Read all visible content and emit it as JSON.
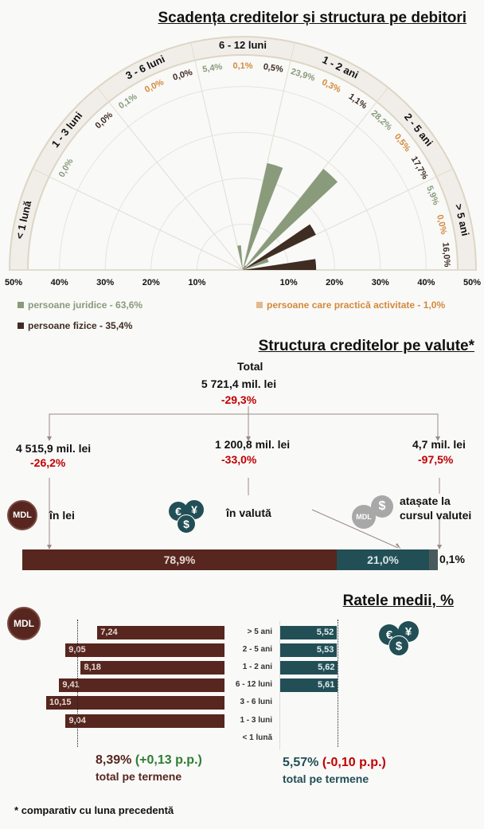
{
  "colors": {
    "juridice": "#899b7a",
    "practica": "#d4893a",
    "fizice": "#3f2c22",
    "mdl": "#56261f",
    "valuta": "#214f55",
    "other": "#4a5a5c"
  },
  "chart_data": [
    {
      "type": "polar-bar",
      "title": "Scadența creditelor și structura pe debitori",
      "categories": [
        "< 1 lună",
        "1 - 3 luni",
        "3 - 6 luni",
        "6 - 12 luni",
        "1 - 2 ani",
        "2 - 5 ani",
        "> 5 ani"
      ],
      "series": [
        {
          "name": "persoane juridice - 63,6%",
          "key": "juridice",
          "values": [
            0.0,
            0.0,
            0.1,
            5.4,
            23.9,
            28.2,
            5.9
          ],
          "labels": [
            "",
            "0,0%",
            "0,1%",
            "5,4%",
            "23,9%",
            "28,2%",
            "5,9%"
          ]
        },
        {
          "name": "persoane care practică activitate - 1,0%",
          "key": "practica",
          "values": [
            0,
            0,
            0.0,
            0.1,
            0.3,
            0.5,
            0.0
          ],
          "labels": [
            "",
            "",
            "0,0%",
            "0,1%",
            "0,3%",
            "0,5%",
            "0,0%"
          ]
        },
        {
          "name": "persoane fizice - 35,4%",
          "key": "fizice",
          "values": [
            0,
            0.0,
            0.0,
            0.5,
            1.1,
            17.7,
            16.0
          ],
          "labels": [
            "",
            "0,0%",
            "0,0%",
            "0,5%",
            "1,1%",
            "17,7%",
            "16,0%"
          ]
        }
      ],
      "axis_ticks": [
        "50%",
        "40%",
        "30%",
        "20%",
        "10%",
        "10%",
        "20%",
        "30%",
        "40%",
        "50%"
      ],
      "rmax": 50
    },
    {
      "type": "bar",
      "title": "Ratele medii, %",
      "categories": [
        "> 5 ani",
        "2 - 5 ani",
        "1 - 2 ani",
        "6 - 12 luni",
        "3 - 6 luni",
        "1 - 3 luni",
        "< 1 lună"
      ],
      "series": [
        {
          "name": "MDL",
          "values": [
            7.24,
            9.05,
            8.18,
            9.41,
            10.15,
            9.04,
            null
          ],
          "labels": [
            "7,24",
            "9,05",
            "8,18",
            "9,41",
            "10,15",
            "9,04",
            ""
          ],
          "average": 8.39
        },
        {
          "name": "valută",
          "values": [
            5.52,
            5.53,
            5.62,
            5.61,
            null,
            null,
            null
          ],
          "labels": [
            "5,52",
            "5,53",
            "5,62",
            "5,61",
            "",
            "",
            ""
          ],
          "average": 5.57
        }
      ]
    }
  ],
  "structure": {
    "title": "Structura creditelor pe valute*",
    "total_label": "Total",
    "total_value": "5 721,4 mil. lei",
    "total_change": "-29,3%",
    "branches": [
      {
        "value": "4 515,9 mil. lei",
        "change": "-26,2%",
        "name": "în lei",
        "share": "78,9%",
        "pct": 78.9
      },
      {
        "value": "1 200,8 mil. lei",
        "change": "-33,0%",
        "name": "în valută",
        "share": "21,0%",
        "pct": 21.0
      },
      {
        "value": "4,7 mil. lei",
        "change": "-97,5%",
        "name": "atașate la cursul valutei",
        "share": "0,1%",
        "pct": 0.1
      }
    ]
  },
  "icons": {
    "mdl": "MDL",
    "euro": "€",
    "yen": "¥",
    "dollar": "$"
  },
  "rates": {
    "mdl_total": "8,39%",
    "mdl_change": "(+0,13 p.p.)",
    "fx_total": "5,57%",
    "fx_change": "(-0,10 p.p.)",
    "caption": "total pe termene"
  },
  "footnote_star": "*",
  "footnote": "comparativ cu luna precedentă"
}
